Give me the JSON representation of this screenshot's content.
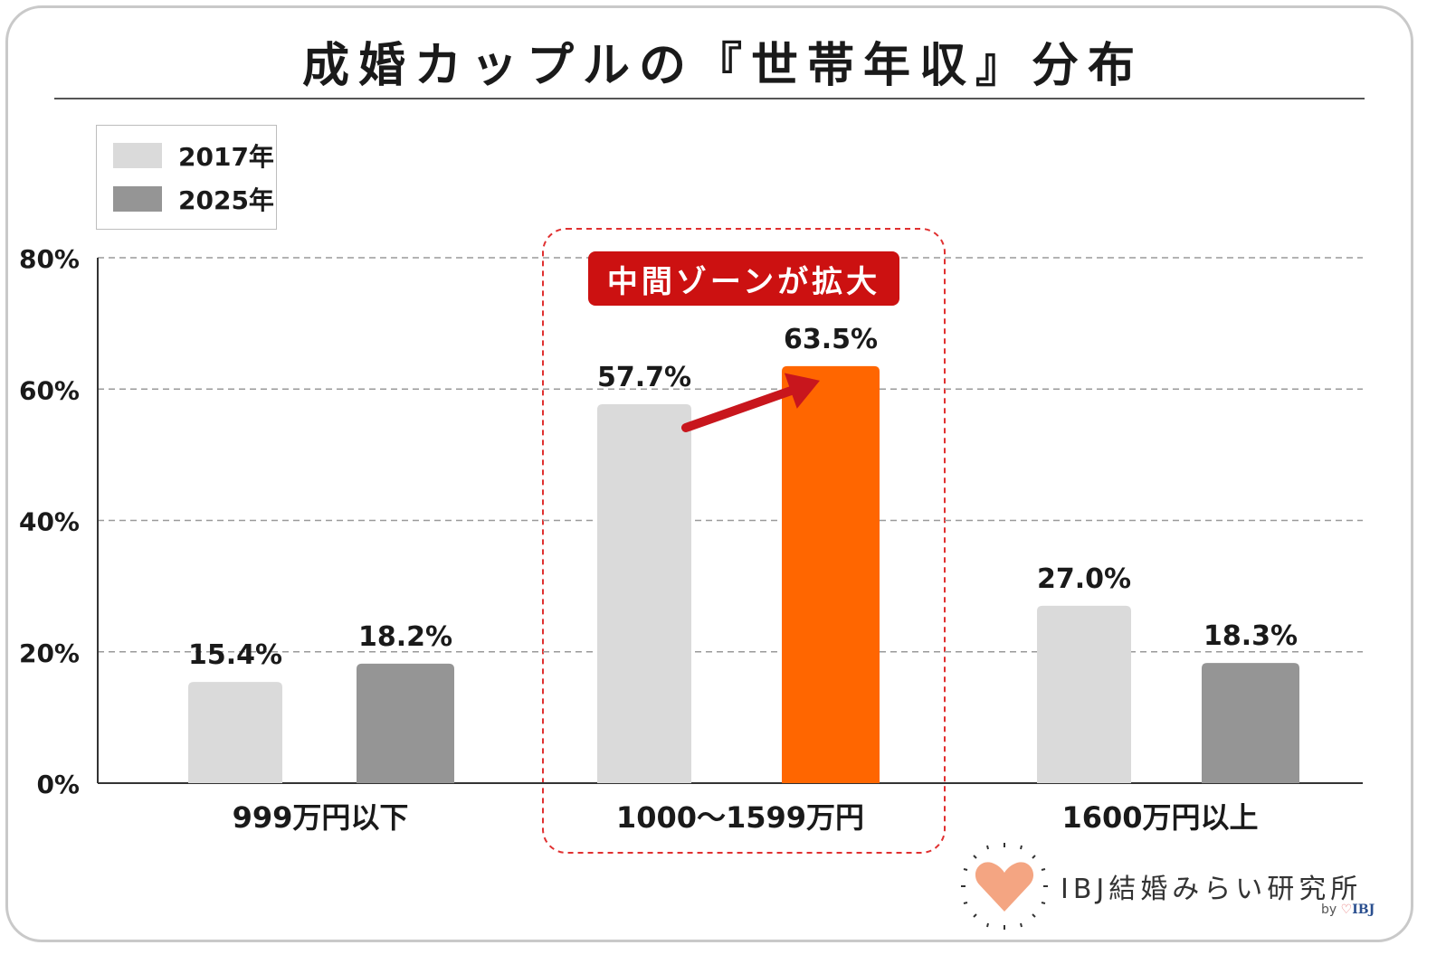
{
  "title": "成婚カップルの『世帯年収』分布",
  "callout": "中間ゾーンが拡大",
  "logo": {
    "text": "IBJ結婚みらい研究所",
    "by_prefix": "by",
    "by_brand": "IBJ"
  },
  "colors": {
    "y2017": "#dadada",
    "y2025": "#959595",
    "highlight": "#ff6600",
    "arrow": "#c8161d",
    "zone_border": "#e03030"
  },
  "chart_data": {
    "type": "bar",
    "categories": [
      "999万円以下",
      "1000～1599万円",
      "1600万円以上"
    ],
    "series": [
      {
        "name": "2017年",
        "values": [
          15.4,
          57.7,
          27.0
        ],
        "labels": [
          "15.4%",
          "57.7%",
          "27.0%"
        ]
      },
      {
        "name": "2025年",
        "values": [
          18.2,
          63.5,
          18.3
        ],
        "labels": [
          "18.2%",
          "63.5%",
          "18.3%"
        ]
      }
    ],
    "yticks": [
      "0%",
      "20%",
      "40%",
      "60%",
      "80%"
    ],
    "ytick_values": [
      0,
      20,
      40,
      60,
      80
    ],
    "ylim": [
      0,
      80
    ],
    "grid": true,
    "legend": "top-left",
    "highlight_category": "1000～1599万円"
  }
}
